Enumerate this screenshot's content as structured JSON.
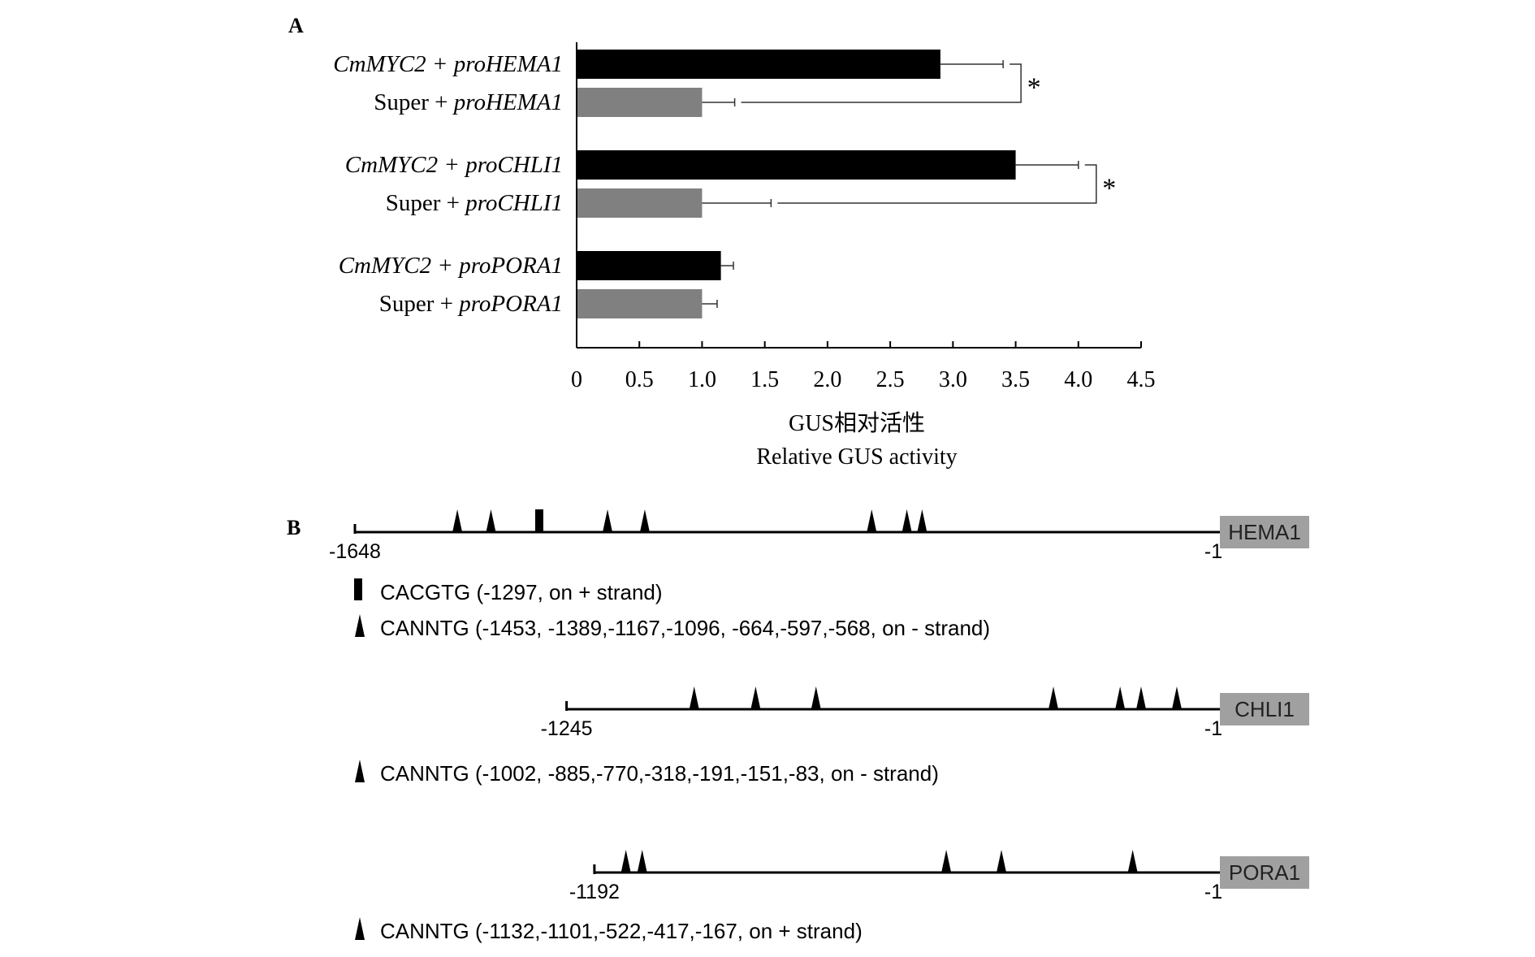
{
  "panels": {
    "a_label": "A",
    "b_label": "B"
  },
  "chart_data": {
    "type": "bar",
    "orientation": "horizontal",
    "categories": [
      {
        "plain": "",
        "italic": "CmMYC2 + proHEMA1"
      },
      {
        "plain": "Super + ",
        "italic": "proHEMA1"
      },
      {
        "plain": "",
        "italic": "CmMYC2 + proCHLI1"
      },
      {
        "plain": "Super + ",
        "italic": "proCHLI1"
      },
      {
        "plain": "",
        "italic": "CmMYC2 + proPORA1"
      },
      {
        "plain": "Super + ",
        "italic": "proPORA1"
      }
    ],
    "values": [
      2.9,
      1.0,
      3.5,
      1.0,
      1.15,
      1.0
    ],
    "errors": [
      0.5,
      0.26,
      0.5,
      0.55,
      0.1,
      0.12
    ],
    "bar_colors": [
      "#000000",
      "#808080",
      "#000000",
      "#808080",
      "#000000",
      "#808080"
    ],
    "xlim": [
      0,
      4.5
    ],
    "xticks": [
      0,
      0.5,
      1.0,
      1.5,
      2.0,
      2.5,
      3.0,
      3.5,
      4.0,
      4.5
    ],
    "xtick_labels": [
      "0",
      "0.5",
      "1.0",
      "1.5",
      "2.0",
      "2.5",
      "3.0",
      "3.5",
      "4.0",
      "4.5"
    ],
    "xlabel_cn": "GUS相对活性",
    "xlabel_en": "Relative GUS activity",
    "significance": [
      {
        "pair": [
          0,
          1
        ],
        "label": "*"
      },
      {
        "pair": [
          2,
          3
        ],
        "label": "*"
      }
    ],
    "grid": false
  },
  "promoter_diagrams": [
    {
      "gene": "HEMA1",
      "start_label": "-1648",
      "end_label": "-1",
      "length": 1648,
      "boxes": [
        -1297
      ],
      "triangles": [
        -1453,
        -1389,
        -1167,
        -1096,
        -664,
        -597,
        -568
      ],
      "legend": [
        {
          "symbol": "box",
          "text": "CACGTG (-1297, on + strand)"
        },
        {
          "symbol": "triangle",
          "text": "CANNTG (-1453, -1389,-1167,-1096, -664,-597,-568, on - strand)"
        }
      ]
    },
    {
      "gene": "CHLI1",
      "start_label": "-1245",
      "end_label": "-1",
      "length": 1245,
      "boxes": [],
      "triangles": [
        -1002,
        -885,
        -770,
        -318,
        -191,
        -151,
        -83
      ],
      "legend": [
        {
          "symbol": "triangle",
          "text": "CANNTG (-1002, -885,-770,-318,-191,-151,-83, on - strand)"
        }
      ]
    },
    {
      "gene": "PORA1",
      "start_label": "-1192",
      "end_label": "-1",
      "length": 1192,
      "boxes": [],
      "triangles": [
        -1132,
        -1101,
        -522,
        -417,
        -167
      ],
      "legend": [
        {
          "symbol": "triangle",
          "text": "CANNTG (-1132,-1101,-522,-417,-167, on + strand)"
        }
      ]
    }
  ],
  "colors": {
    "black_bar": "#000000",
    "grey_bar": "#808080",
    "gene_box": "#a0a0a0"
  }
}
